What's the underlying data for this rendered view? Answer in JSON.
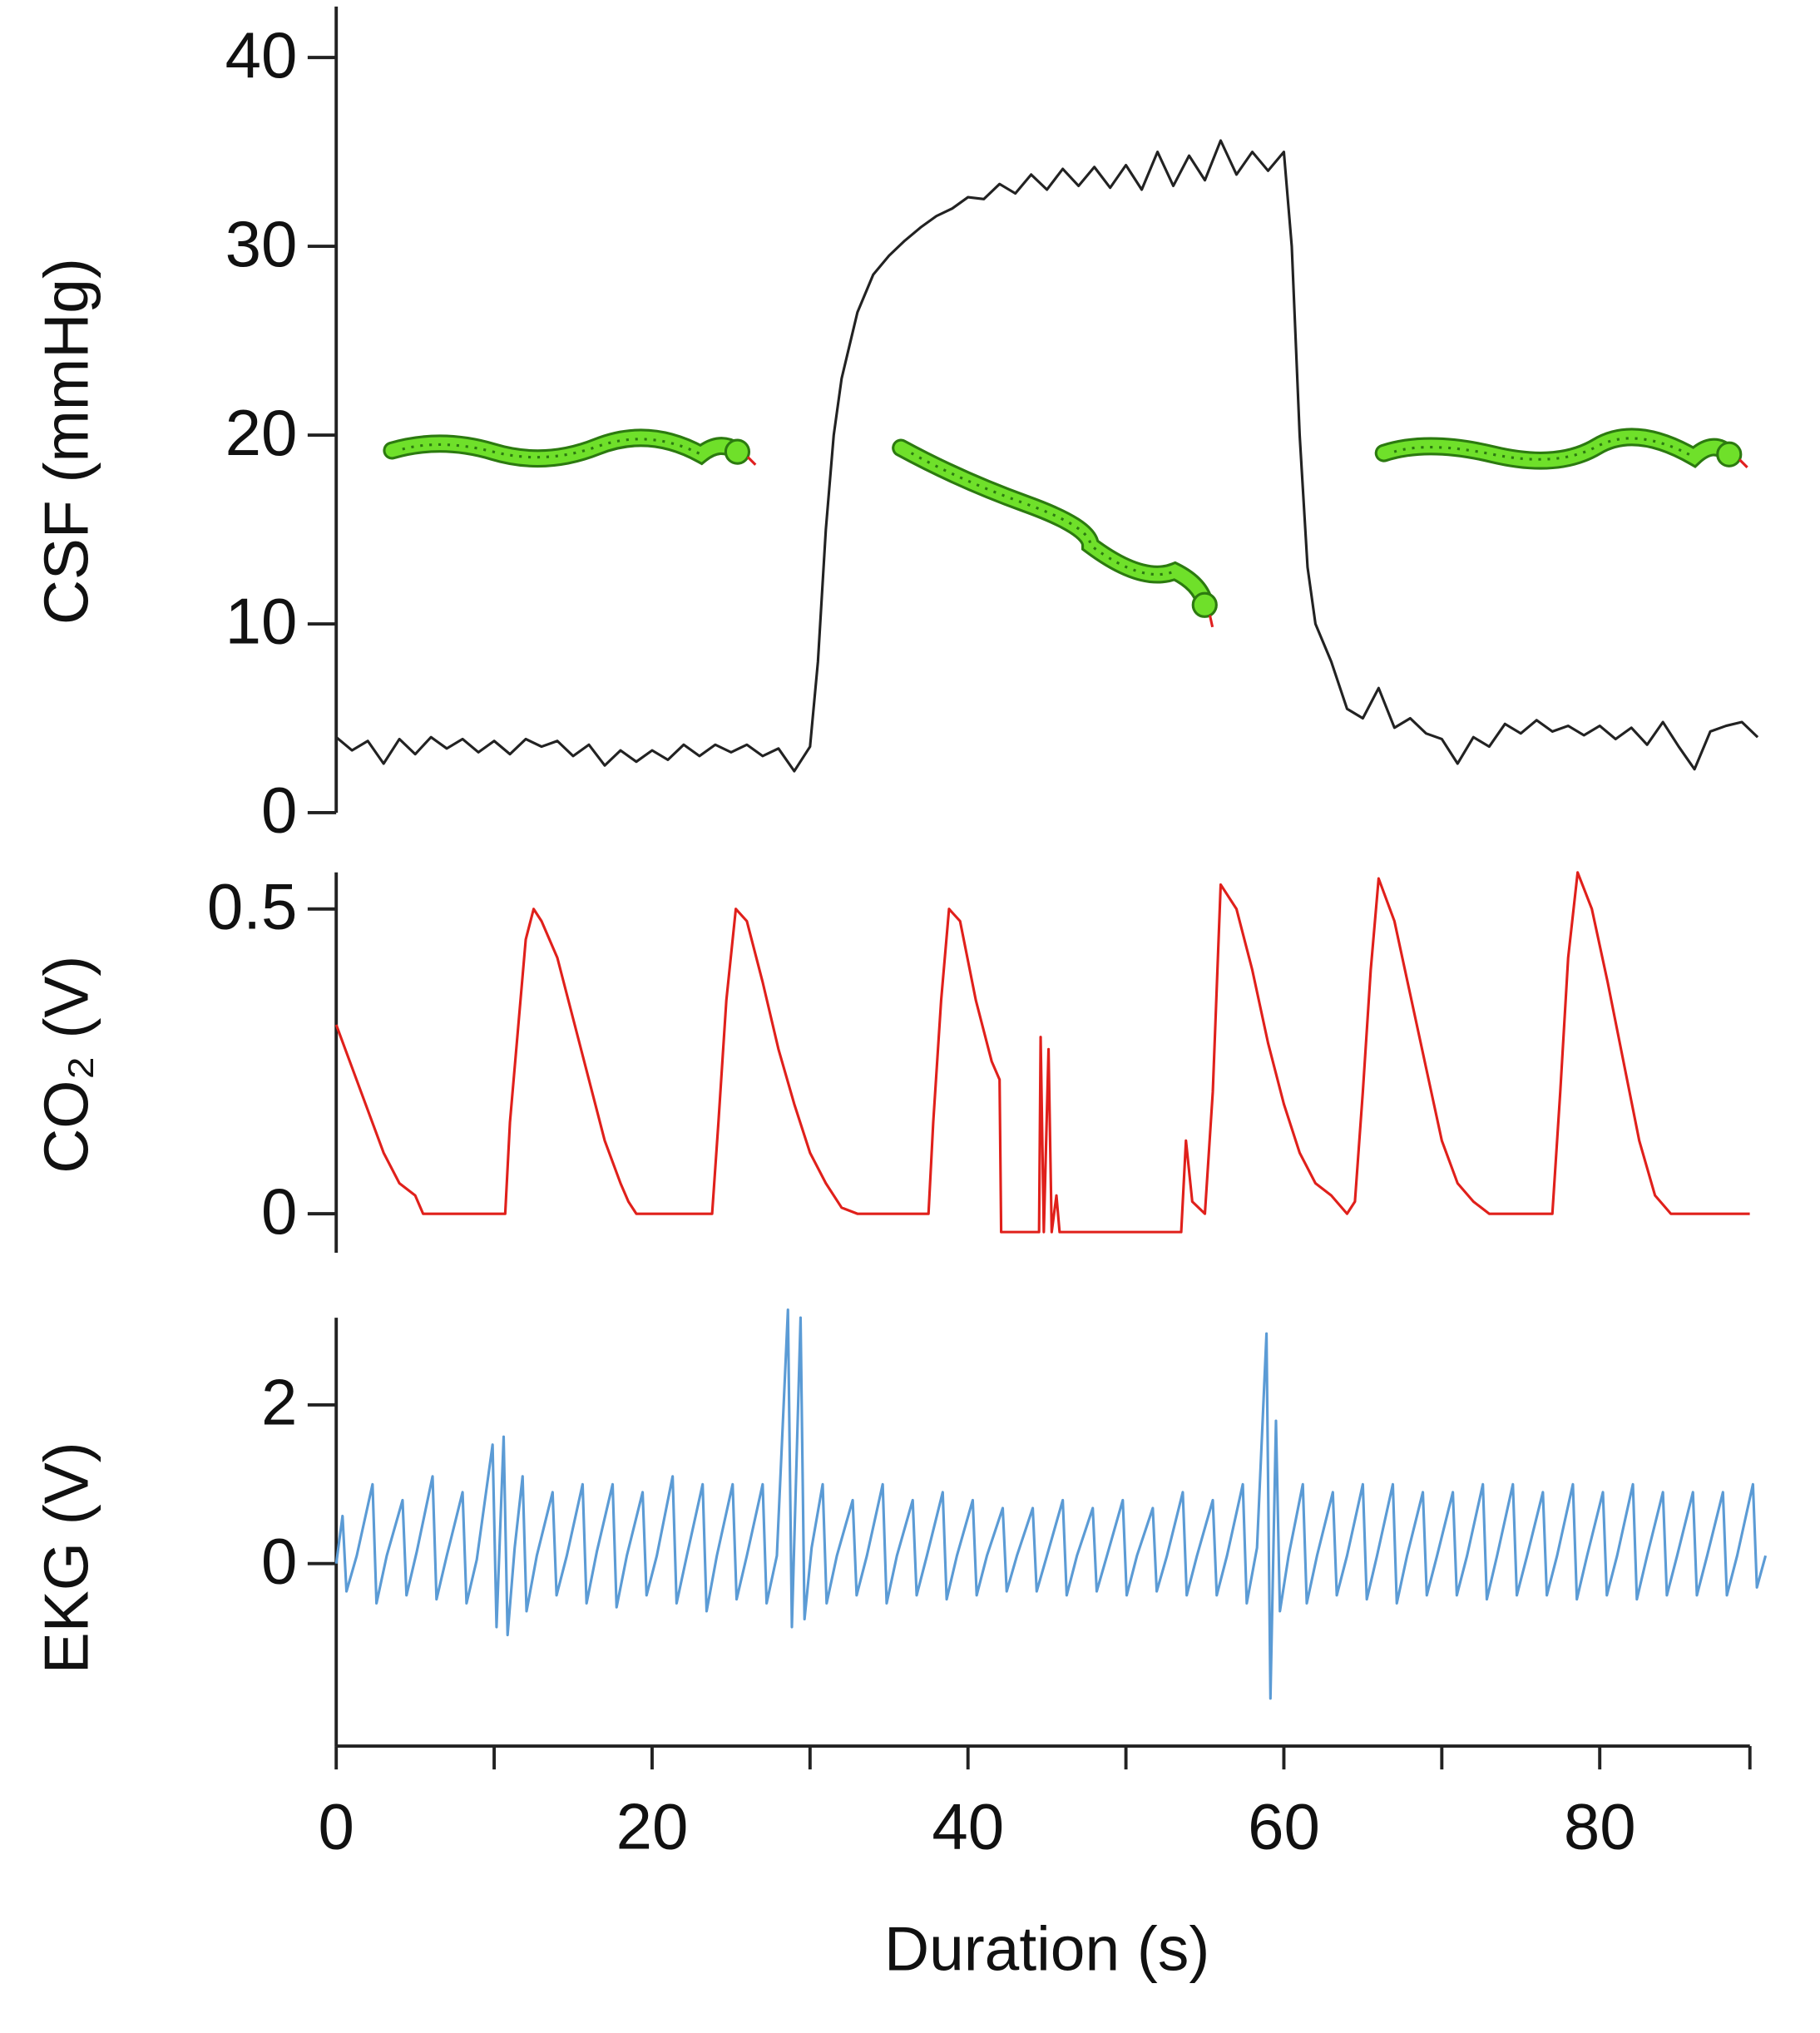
{
  "chart_data": [
    {
      "type": "line",
      "ylabel": "CSF (mmHg)",
      "color": "#222222",
      "x": [
        0,
        1,
        2,
        3,
        4,
        5,
        6,
        7,
        8,
        9,
        10,
        11,
        12,
        13,
        14,
        15,
        16,
        17,
        18,
        19,
        20,
        21,
        22,
        23,
        24,
        25,
        26,
        27,
        28,
        29,
        30,
        30.5,
        31,
        31.5,
        32,
        33,
        34,
        35,
        36,
        37,
        38,
        39,
        40,
        41,
        42,
        43,
        44,
        45,
        46,
        47,
        48,
        49,
        50,
        51,
        52,
        53,
        54,
        55,
        56,
        57,
        58,
        59,
        60,
        60.5,
        61,
        61.5,
        62,
        63,
        64,
        65,
        66,
        67,
        68,
        69,
        70,
        71,
        72,
        73,
        74,
        75,
        76,
        77,
        78,
        79,
        80,
        81,
        82,
        83,
        84,
        85,
        86,
        87,
        88,
        89,
        90
      ],
      "values": [
        4,
        3.3,
        3.8,
        2.6,
        3.9,
        3.1,
        4.0,
        3.4,
        3.9,
        3.2,
        3.8,
        3.1,
        3.9,
        3.5,
        3.8,
        3.0,
        3.6,
        2.5,
        3.3,
        2.7,
        3.3,
        2.8,
        3.6,
        3.0,
        3.6,
        3.2,
        3.6,
        3.0,
        3.4,
        2.2,
        3.5,
        8,
        15,
        20,
        23,
        26.5,
        28.5,
        29.5,
        30.3,
        31,
        31.6,
        32,
        32.6,
        32.5,
        33.3,
        32.8,
        33.8,
        33,
        34.1,
        33.2,
        34.2,
        33.1,
        34.3,
        33,
        35,
        33.2,
        34.8,
        33.5,
        35.6,
        33.8,
        35,
        34,
        35,
        30,
        20,
        13,
        10,
        8,
        5.5,
        5.0,
        6.6,
        4.5,
        5,
        4.2,
        3.9,
        2.6,
        4.0,
        3.5,
        4.7,
        4.2,
        4.9,
        4.3,
        4.6,
        4.1,
        4.6,
        3.9,
        4.5,
        3.6,
        4.8,
        3.5,
        2.3,
        4.3,
        4.6,
        4.8,
        4.0
      ],
      "xlim": [
        0,
        90
      ],
      "ylim": [
        0,
        42.7
      ],
      "yticks": [
        0,
        10,
        20,
        30,
        40
      ]
    },
    {
      "type": "line",
      "ylabel": "CO₂ (V)",
      "color": "#e0201b",
      "x": [
        0,
        1,
        2,
        3,
        4,
        5,
        5.5,
        10.7,
        11,
        11.5,
        12,
        12.5,
        13,
        14,
        15,
        16,
        17,
        18,
        18.5,
        19,
        23.8,
        24.2,
        24.7,
        25.3,
        26,
        27,
        28,
        29,
        30,
        31,
        32,
        33,
        37.5,
        37.8,
        38.3,
        38.8,
        39.5,
        40.5,
        41.5,
        42,
        42.1,
        44.5,
        44.6,
        44.8,
        45.1,
        45.3,
        45.6,
        45.8,
        53.5,
        53.8,
        54.2,
        55,
        55.5,
        56,
        57,
        58,
        59,
        60,
        61,
        62,
        63,
        64,
        64.5,
        65,
        65.5,
        66,
        67,
        68,
        69,
        70,
        71,
        72,
        73,
        77,
        77.5,
        78,
        78.6,
        79.5,
        80.5,
        81.5,
        82.5,
        83.5,
        84.5,
        89.5
      ],
      "values": [
        0.31,
        0.24,
        0.17,
        0.1,
        0.05,
        0.03,
        0.0,
        0.0,
        0.15,
        0.3,
        0.45,
        0.5,
        0.48,
        0.42,
        0.32,
        0.22,
        0.12,
        0.05,
        0.02,
        0.0,
        0,
        0.15,
        0.35,
        0.5,
        0.48,
        0.38,
        0.27,
        0.18,
        0.1,
        0.05,
        0.01,
        0,
        0,
        0.15,
        0.35,
        0.5,
        0.48,
        0.35,
        0.25,
        0.22,
        -0.03,
        -0.03,
        0.29,
        -0.03,
        0.27,
        -0.03,
        0.03,
        -0.03,
        -0.03,
        0.12,
        0.02,
        0.0,
        0.2,
        0.54,
        0.5,
        0.4,
        0.28,
        0.18,
        0.1,
        0.05,
        0.03,
        0.0,
        0.02,
        0.2,
        0.4,
        0.55,
        0.48,
        0.36,
        0.24,
        0.12,
        0.05,
        0.02,
        0.0,
        0,
        0.2,
        0.42,
        0.56,
        0.5,
        0.38,
        0.25,
        0.12,
        0.03,
        0.0,
        0.0
      ],
      "xlim": [
        0,
        90
      ],
      "ylim": [
        -0.064,
        0.56
      ],
      "yticks": [
        0,
        0.5
      ]
    },
    {
      "type": "line",
      "ylabel": "EKG (V)",
      "xlabel": "Duration (s)",
      "color": "#5b9bd5",
      "x": [
        0,
        0.4,
        0.65,
        1.3,
        2.3,
        2.55,
        3.2,
        4.2,
        4.45,
        5.1,
        6.1,
        6.35,
        7.0,
        8.0,
        8.25,
        8.9,
        9.9,
        10.15,
        10.6,
        10.85,
        11.3,
        11.8,
        12.05,
        12.7,
        13.7,
        13.95,
        14.6,
        15.6,
        15.85,
        16.5,
        17.5,
        17.75,
        18.4,
        19.4,
        19.65,
        20.3,
        21.3,
        21.55,
        22.2,
        23.2,
        23.45,
        24.1,
        25.1,
        25.35,
        26.0,
        27.0,
        27.25,
        27.9,
        28.6,
        28.85,
        29.4,
        29.65,
        30.1,
        30.8,
        31.05,
        31.7,
        32.7,
        32.95,
        33.6,
        34.6,
        34.85,
        35.5,
        36.5,
        36.75,
        37.4,
        38.4,
        38.65,
        39.3,
        40.3,
        40.55,
        41.2,
        42.2,
        42.45,
        43.1,
        44.1,
        44.35,
        45.0,
        46.0,
        46.25,
        46.9,
        47.9,
        48.15,
        48.8,
        49.8,
        50.05,
        50.7,
        51.7,
        51.95,
        52.6,
        53.6,
        53.85,
        54.5,
        55.5,
        55.75,
        56.4,
        57.4,
        57.65,
        58.3,
        58.9,
        59.15,
        59.5,
        59.75,
        60.3,
        61.2,
        61.45,
        62.1,
        63.1,
        63.35,
        64.0,
        65.0,
        65.25,
        65.9,
        66.9,
        67.15,
        67.8,
        68.8,
        69.05,
        69.7,
        70.7,
        70.95,
        71.6,
        72.6,
        72.85,
        73.5,
        74.5,
        74.75,
        75.4,
        76.4,
        76.65,
        77.3,
        78.3,
        78.55,
        79.2,
        80.2,
        80.45,
        81.1,
        82.1,
        82.35,
        83.0,
        84.0,
        84.25,
        84.9,
        85.9,
        86.15,
        86.8,
        87.8,
        88.05,
        88.7,
        89.7,
        89.95,
        90.5
      ],
      "values": [
        0.0,
        0.6,
        -0.35,
        0.1,
        1.0,
        -0.5,
        0.1,
        0.8,
        -0.4,
        0.15,
        1.1,
        -0.45,
        0.1,
        0.9,
        -0.5,
        0.05,
        1.5,
        -0.8,
        1.6,
        -0.9,
        0.2,
        1.1,
        -0.6,
        0.1,
        0.9,
        -0.4,
        0.1,
        1.0,
        -0.5,
        0.15,
        1.0,
        -0.55,
        0.1,
        0.9,
        -0.4,
        0.1,
        1.1,
        -0.5,
        0.1,
        1.0,
        -0.6,
        0.1,
        1.0,
        -0.45,
        0.1,
        1.0,
        -0.5,
        0.1,
        3.2,
        -0.8,
        3.1,
        -0.7,
        0.2,
        1.0,
        -0.5,
        0.1,
        0.8,
        -0.4,
        0.1,
        1.0,
        -0.5,
        0.1,
        0.8,
        -0.4,
        0.1,
        0.9,
        -0.45,
        0.1,
        0.8,
        -0.4,
        0.1,
        0.7,
        -0.35,
        0.1,
        0.7,
        -0.35,
        0.1,
        0.8,
        -0.4,
        0.1,
        0.7,
        -0.35,
        0.1,
        0.8,
        -0.4,
        0.1,
        0.7,
        -0.35,
        0.1,
        0.9,
        -0.4,
        0.1,
        0.8,
        -0.4,
        0.1,
        1.0,
        -0.5,
        0.2,
        2.9,
        -1.7,
        1.8,
        -0.6,
        0.1,
        1.0,
        -0.5,
        0.1,
        0.9,
        -0.4,
        0.1,
        1.0,
        -0.45,
        0.1,
        1.0,
        -0.5,
        0.1,
        0.9,
        -0.4,
        0.1,
        0.9,
        -0.4,
        0.1,
        1.0,
        -0.45,
        0.1,
        1.0,
        -0.4,
        0.1,
        0.9,
        -0.4,
        0.1,
        1.0,
        -0.45,
        0.1,
        0.9,
        -0.4,
        0.1,
        1.0,
        -0.45,
        0.1,
        0.9,
        -0.4,
        0.1,
        0.9,
        -0.4,
        0.1,
        0.9,
        -0.4,
        0.1,
        1.0,
        -0.3,
        0.1
      ],
      "xlim": [
        0,
        90
      ],
      "ylim": [
        -2.3,
        3.1
      ],
      "yticks": [
        0,
        2
      ],
      "xticks": [
        0,
        20,
        40,
        60,
        80
      ],
      "xminorticks": [
        10,
        30,
        50,
        70,
        90
      ]
    }
  ]
}
